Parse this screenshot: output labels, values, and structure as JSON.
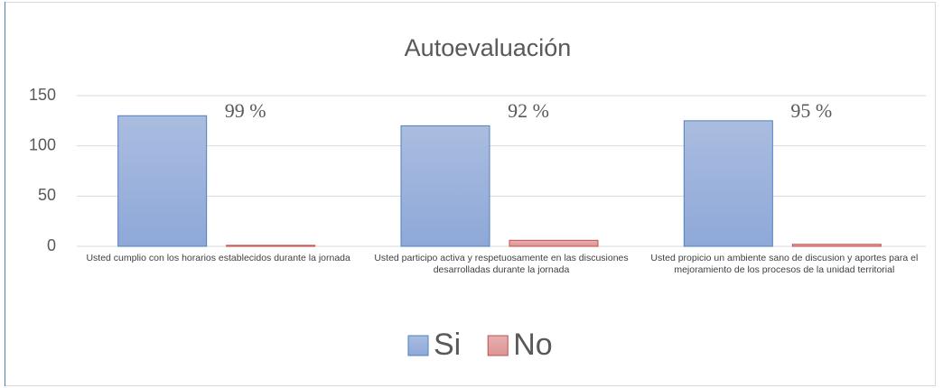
{
  "chart_data": {
    "type": "bar",
    "title": "Autoevaluación",
    "categories": [
      "Usted cumplio con los horarios establecidos durante la jornada",
      "Usted participo activa y respetuosamente en las discusiones desarrolladas durante la jornada",
      "Usted propicio un ambiente sano de discusion y aportes para el mejoramiento de los procesos de la unidad territorial"
    ],
    "series": [
      {
        "name": "Si",
        "color": "#95b0dc",
        "values": [
          130,
          120,
          125
        ]
      },
      {
        "name": "No",
        "color": "#e3a0a0",
        "values": [
          1,
          6,
          2
        ]
      }
    ],
    "annotations": [
      "99 %",
      "92 %",
      "95 %"
    ],
    "ylim": [
      0,
      150
    ],
    "yticks": [
      0,
      50,
      100,
      150
    ],
    "grid": true,
    "legend": "bottom"
  }
}
